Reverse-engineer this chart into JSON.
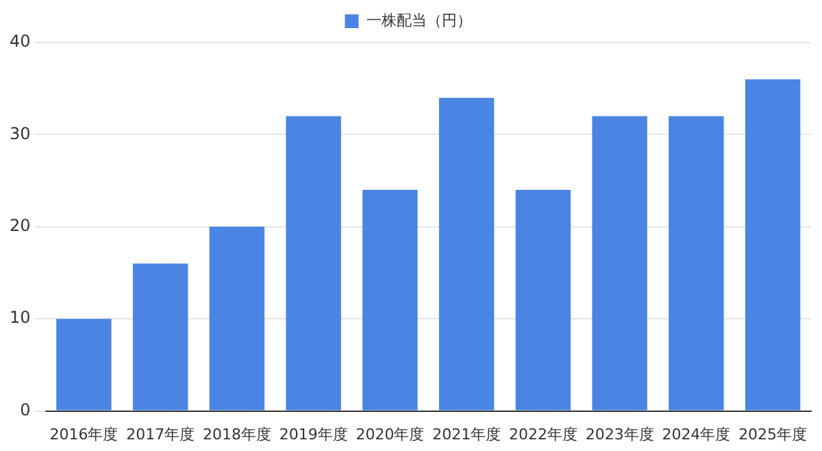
{
  "chart_data": {
    "type": "bar",
    "categories": [
      "2016年度",
      "2017年度",
      "2018年度",
      "2019年度",
      "2020年度",
      "2021年度",
      "2022年度",
      "2023年度",
      "2024年度",
      "2025年度"
    ],
    "series": [
      {
        "name": "一株配当（円）",
        "color": "#4a85e3",
        "values": [
          10,
          16,
          20,
          32,
          24,
          34,
          24,
          32,
          32,
          36
        ]
      }
    ],
    "ylim": [
      0,
      40
    ],
    "yticks": [
      0,
      10,
      20,
      30,
      40
    ],
    "grid": "y",
    "legend": "top"
  }
}
